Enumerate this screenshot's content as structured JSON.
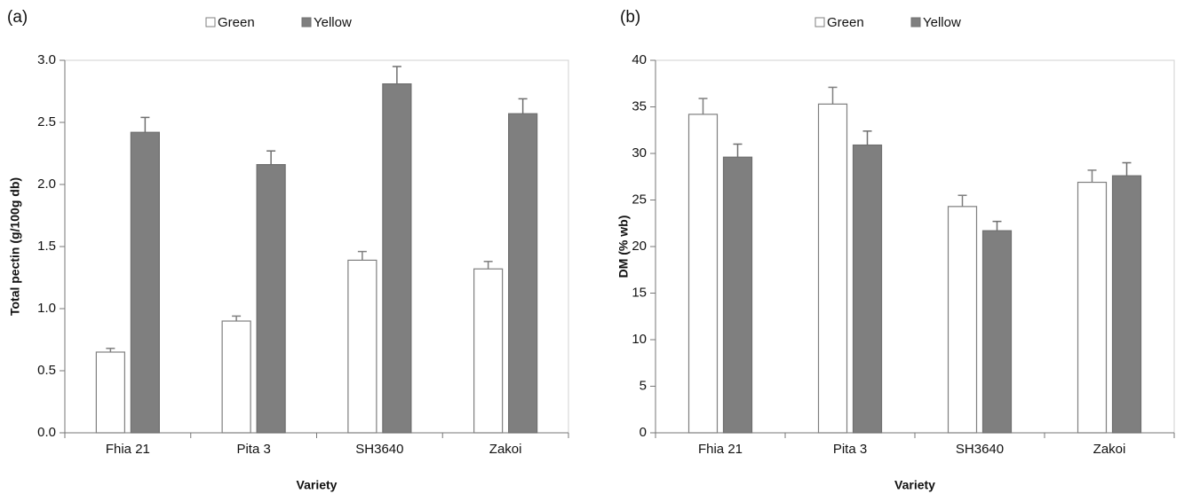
{
  "chart_data": [
    {
      "type": "bar",
      "panel_label": "(a)",
      "xlabel": "Variety",
      "ylabel": "Total pectin (g/100g db)",
      "categories": [
        "Fhia 21",
        "Pita 3",
        "SH3640",
        "Zakoi"
      ],
      "series": [
        {
          "name": "Green",
          "color": "#ffffff",
          "edgecolor": "#7f7f7f",
          "values": [
            0.65,
            0.9,
            1.39,
            1.32
          ],
          "errors": [
            0.03,
            0.04,
            0.07,
            0.06
          ]
        },
        {
          "name": "Yellow",
          "color": "#7f7f7f",
          "edgecolor": "#6f6f6f",
          "values": [
            2.42,
            2.16,
            2.81,
            2.57
          ],
          "errors": [
            0.12,
            0.11,
            0.14,
            0.12
          ]
        }
      ],
      "ylim": [
        0,
        3
      ],
      "yticks": [
        {
          "value": 0,
          "label": "0.0"
        },
        0.5,
        {
          "value": 1,
          "label": "1.0"
        },
        1.5,
        {
          "value": 2,
          "label": "2.0"
        },
        2.5,
        {
          "value": 3,
          "label": "3.0"
        }
      ]
    },
    {
      "type": "bar",
      "panel_label": "(b)",
      "xlabel": "Variety",
      "ylabel": "DM (% wb)",
      "categories": [
        "Fhia 21",
        "Pita 3",
        "SH3640",
        "Zakoi"
      ],
      "series": [
        {
          "name": "Green",
          "color": "#ffffff",
          "edgecolor": "#7f7f7f",
          "values": [
            34.2,
            35.3,
            24.3,
            26.9
          ],
          "errors": [
            1.7,
            1.8,
            1.2,
            1.3
          ]
        },
        {
          "name": "Yellow",
          "color": "#7f7f7f",
          "edgecolor": "#6f6f6f",
          "values": [
            29.6,
            30.9,
            21.7,
            27.6
          ],
          "errors": [
            1.4,
            1.5,
            1.0,
            1.4
          ]
        }
      ],
      "ylim": [
        0,
        40
      ],
      "yticks": [
        0,
        5,
        10,
        15,
        20,
        25,
        30,
        35,
        40
      ]
    }
  ]
}
